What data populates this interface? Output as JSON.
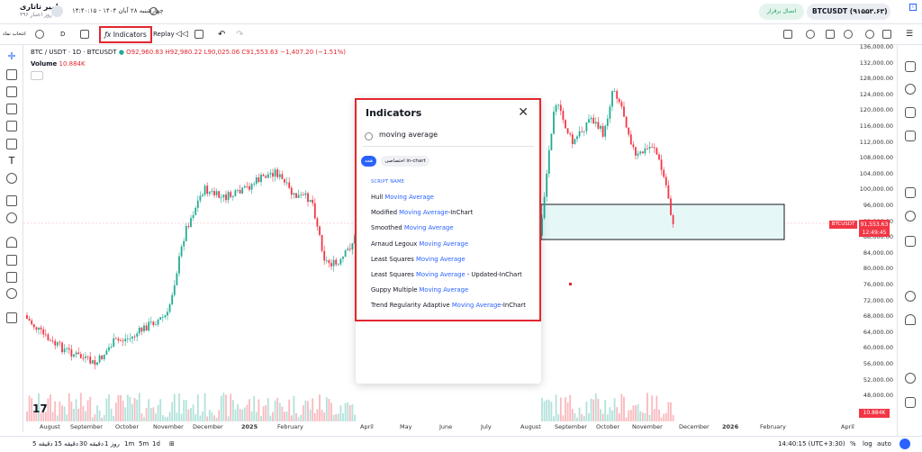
{
  "topbar": {
    "user_name": "امیر تاتاری",
    "user_sub": "۳۹۶ روز اعتبار",
    "datetime": "چهارشنبه ۲۸ آبان ۱۴۰۴ - ۱۴:۴۰:۱۵",
    "symbol_pill": "BTCUSDT (۹۱۵۵۳.۶۳)",
    "connect_label": "اتصال برقرار"
  },
  "toolbar": {
    "left_label": "انتخاب نماد",
    "interval": "D",
    "indicators_label": "Indicators",
    "replay_label": "Replay"
  },
  "legend": {
    "title": "BTC / USDT · 1D · BTCUSDT",
    "ohlc": "O92,960.83 H92,980.22 L90,025.06 C91,553.63 −1,407.20 (−1.51%)",
    "volume_label": "Volume",
    "volume_value": "10.884K"
  },
  "price_axis": {
    "ticks": [
      "136,000.00",
      "132,000.00",
      "128,000.00",
      "124,000.00",
      "120,000.00",
      "116,000.00",
      "112,000.00",
      "108,000.00",
      "104,000.00",
      "100,000.00",
      "96,000.00",
      "92,000.00",
      "88,000.00",
      "84,000.00",
      "80,000.00",
      "76,000.00",
      "72,000.00",
      "68,000.00",
      "64,000.00",
      "60,000.00",
      "56,000.00",
      "52,000.00",
      "48,000.00"
    ],
    "current_price": "91,553.63",
    "countdown": "12:49:45",
    "symbol_tag": "BTCUSDT",
    "volume_tag": "10.884K"
  },
  "time_axis": {
    "ticks": [
      "August",
      "September",
      "October",
      "November",
      "December",
      "2025",
      "February",
      "April",
      "May",
      "June",
      "July",
      "August",
      "September",
      "October",
      "November",
      "December",
      "2026",
      "February",
      "April"
    ]
  },
  "bottombar": {
    "ranges": [
      "5 دقیقه",
      "15 دقیقه",
      "30 دقیقه",
      "1 روز",
      "1m",
      "5m",
      "1d"
    ],
    "time": "14:40:15 (UTC+3:30)",
    "percent": "%",
    "log": "log",
    "auto": "auto"
  },
  "dialog": {
    "title": "Indicators",
    "search_value": "moving average",
    "chip_all": "همه",
    "chip_inchart": "اختصاصی in-chart",
    "section_header": "SCRIPT NAME",
    "results": [
      {
        "pre": "Hull ",
        "hl": "Moving Average",
        "post": ""
      },
      {
        "pre": "Modified ",
        "hl": "Moving Average",
        "post": "-InChart"
      },
      {
        "pre": "Smoothed ",
        "hl": "Moving Average",
        "post": ""
      },
      {
        "pre": "Arnaud Legoux ",
        "hl": "Moving Average",
        "post": ""
      },
      {
        "pre": "Least Squares ",
        "hl": "Moving Average",
        "post": ""
      },
      {
        "pre": "Least Squares ",
        "hl": "Moving Average",
        "post": " - Updated-InChart"
      },
      {
        "pre": "Guppy Multiple ",
        "hl": "Moving Average",
        "post": ""
      },
      {
        "pre": "Trend Regularity Adaptive ",
        "hl": "Moving Average",
        "post": "-InChart"
      }
    ]
  },
  "colors": {
    "up": "#22ab94",
    "down": "#f23645",
    "accent": "#2962ff",
    "highlight": "#e3262e"
  }
}
